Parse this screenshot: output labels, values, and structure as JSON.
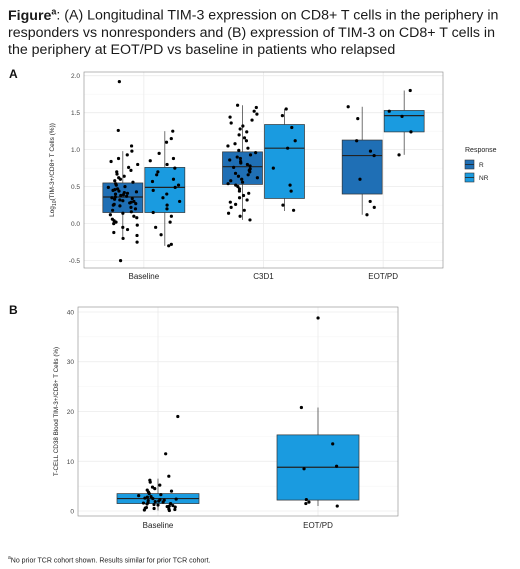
{
  "figure": {
    "title_bold": "Figure",
    "title_sup": "a",
    "title_text": ": (A) Longitudinal TIM-3 expression on CD8+ T cells in the periphery in responders vs nonresponders and (B) expression of TIM-3 on CD8+ T cells in the periphery at EOT/PD vs baseline in patients who relapsed",
    "footnote_sup": "a",
    "footnote_text": "No prior TCR cohort shown. Results similar for prior TCR cohort."
  },
  "panels": {
    "a_label": "A",
    "b_label": "B"
  },
  "colors": {
    "R": "#1f6fb5",
    "NR": "#1a9be0",
    "points": "#000000",
    "grid": "#ebebeb",
    "border": "#888888"
  },
  "chart_data": [
    {
      "type": "box",
      "panel": "A",
      "ylabel_pre": "Log",
      "ylabel_sub": "10",
      "ylabel_post": "(TIM-3+/CD8+ T Cells (%))",
      "ylim": [
        -0.6,
        2.05
      ],
      "yticks": [
        "-0.5",
        "0.0",
        "0.5",
        "1.0",
        "1.5",
        "2.0"
      ],
      "categories": [
        "Baseline",
        "C3D1",
        "EOT/PD"
      ],
      "grid": true,
      "legend": {
        "title": "Response",
        "items": [
          "R",
          "NR"
        ],
        "placement": "right"
      },
      "series": [
        {
          "name": "R",
          "boxes": [
            {
              "q1": 0.15,
              "median": 0.36,
              "q3": 0.55,
              "whisker_low": -0.2,
              "whisker_high": 0.98
            },
            {
              "q1": 0.53,
              "median": 0.77,
              "q3": 0.97,
              "whisker_low": 0.05,
              "whisker_high": 1.6
            },
            {
              "q1": 0.4,
              "median": 0.92,
              "q3": 1.13,
              "whisker_low": 0.12,
              "whisker_high": 1.58
            }
          ]
        },
        {
          "name": "NR",
          "boxes": [
            {
              "q1": 0.15,
              "median": 0.49,
              "q3": 0.76,
              "whisker_low": -0.3,
              "whisker_high": 1.25
            },
            {
              "q1": 0.34,
              "median": 1.02,
              "q3": 1.34,
              "whisker_low": 0.17,
              "whisker_high": 1.55
            },
            {
              "q1": 1.24,
              "median": 1.46,
              "q3": 1.53,
              "whisker_low": 0.93,
              "whisker_high": 1.8
            }
          ]
        }
      ],
      "points": [
        [
          0,
          "R",
          1.92
        ],
        [
          0,
          "R",
          1.26
        ],
        [
          0,
          "R",
          1.05
        ],
        [
          0,
          "R",
          0.98
        ],
        [
          0,
          "R",
          0.93
        ],
        [
          0,
          "R",
          0.88
        ],
        [
          0,
          "R",
          0.84
        ],
        [
          0,
          "R",
          0.8
        ],
        [
          0,
          "R",
          0.76
        ],
        [
          0,
          "R",
          0.72
        ],
        [
          0,
          "R",
          0.7
        ],
        [
          0,
          "R",
          0.67
        ],
        [
          0,
          "R",
          0.64
        ],
        [
          0,
          "R",
          0.62
        ],
        [
          0,
          "R",
          0.6
        ],
        [
          0,
          "R",
          0.58
        ],
        [
          0,
          "R",
          0.56
        ],
        [
          0,
          "R",
          0.54
        ],
        [
          0,
          "R",
          0.52
        ],
        [
          0,
          "R",
          0.5
        ],
        [
          0,
          "R",
          0.49
        ],
        [
          0,
          "R",
          0.47
        ],
        [
          0,
          "R",
          0.46
        ],
        [
          0,
          "R",
          0.45
        ],
        [
          0,
          "R",
          0.44
        ],
        [
          0,
          "R",
          0.43
        ],
        [
          0,
          "R",
          0.42
        ],
        [
          0,
          "R",
          0.41
        ],
        [
          0,
          "R",
          0.4
        ],
        [
          0,
          "R",
          0.39
        ],
        [
          0,
          "R",
          0.38
        ],
        [
          0,
          "R",
          0.37
        ],
        [
          0,
          "R",
          0.36
        ],
        [
          0,
          "R",
          0.35
        ],
        [
          0,
          "R",
          0.34
        ],
        [
          0,
          "R",
          0.33
        ],
        [
          0,
          "R",
          0.32
        ],
        [
          0,
          "R",
          0.31
        ],
        [
          0,
          "R",
          0.3
        ],
        [
          0,
          "R",
          0.29
        ],
        [
          0,
          "R",
          0.28
        ],
        [
          0,
          "R",
          0.27
        ],
        [
          0,
          "R",
          0.26
        ],
        [
          0,
          "R",
          0.25
        ],
        [
          0,
          "R",
          0.24
        ],
        [
          0,
          "R",
          0.22
        ],
        [
          0,
          "R",
          0.2
        ],
        [
          0,
          "R",
          0.18
        ],
        [
          0,
          "R",
          0.16
        ],
        [
          0,
          "R",
          0.14
        ],
        [
          0,
          "R",
          0.12
        ],
        [
          0,
          "R",
          0.1
        ],
        [
          0,
          "R",
          0.08
        ],
        [
          0,
          "R",
          0.06
        ],
        [
          0,
          "R",
          0.04
        ],
        [
          0,
          "R",
          0.02
        ],
        [
          0,
          "R",
          0.0
        ],
        [
          0,
          "R",
          -0.02
        ],
        [
          0,
          "R",
          -0.05
        ],
        [
          0,
          "R",
          -0.08
        ],
        [
          0,
          "R",
          -0.12
        ],
        [
          0,
          "R",
          -0.16
        ],
        [
          0,
          "R",
          -0.2
        ],
        [
          0,
          "R",
          -0.25
        ],
        [
          0,
          "R",
          -0.5
        ],
        [
          0,
          "NR",
          1.25
        ],
        [
          0,
          "NR",
          1.15
        ],
        [
          0,
          "NR",
          1.1
        ],
        [
          0,
          "NR",
          0.95
        ],
        [
          0,
          "NR",
          0.88
        ],
        [
          0,
          "NR",
          0.85
        ],
        [
          0,
          "NR",
          0.8
        ],
        [
          0,
          "NR",
          0.75
        ],
        [
          0,
          "NR",
          0.7
        ],
        [
          0,
          "NR",
          0.66
        ],
        [
          0,
          "NR",
          0.6
        ],
        [
          0,
          "NR",
          0.57
        ],
        [
          0,
          "NR",
          0.52
        ],
        [
          0,
          "NR",
          0.49
        ],
        [
          0,
          "NR",
          0.45
        ],
        [
          0,
          "NR",
          0.4
        ],
        [
          0,
          "NR",
          0.35
        ],
        [
          0,
          "NR",
          0.3
        ],
        [
          0,
          "NR",
          0.25
        ],
        [
          0,
          "NR",
          0.2
        ],
        [
          0,
          "NR",
          0.15
        ],
        [
          0,
          "NR",
          0.1
        ],
        [
          0,
          "NR",
          0.02
        ],
        [
          0,
          "NR",
          -0.05
        ],
        [
          0,
          "NR",
          -0.15
        ],
        [
          0,
          "NR",
          -0.28
        ],
        [
          0,
          "NR",
          -0.3
        ],
        [
          1,
          "R",
          1.6
        ],
        [
          1,
          "R",
          1.57
        ],
        [
          1,
          "R",
          1.52
        ],
        [
          1,
          "R",
          1.48
        ],
        [
          1,
          "R",
          1.44
        ],
        [
          1,
          "R",
          1.4
        ],
        [
          1,
          "R",
          1.36
        ],
        [
          1,
          "R",
          1.32
        ],
        [
          1,
          "R",
          1.28
        ],
        [
          1,
          "R",
          1.24
        ],
        [
          1,
          "R",
          1.2
        ],
        [
          1,
          "R",
          1.16
        ],
        [
          1,
          "R",
          1.12
        ],
        [
          1,
          "R",
          1.08
        ],
        [
          1,
          "R",
          1.05
        ],
        [
          1,
          "R",
          1.02
        ],
        [
          1,
          "R",
          0.99
        ],
        [
          1,
          "R",
          0.96
        ],
        [
          1,
          "R",
          0.93
        ],
        [
          1,
          "R",
          0.9
        ],
        [
          1,
          "R",
          0.88
        ],
        [
          1,
          "R",
          0.86
        ],
        [
          1,
          "R",
          0.84
        ],
        [
          1,
          "R",
          0.82
        ],
        [
          1,
          "R",
          0.8
        ],
        [
          1,
          "R",
          0.78
        ],
        [
          1,
          "R",
          0.76
        ],
        [
          1,
          "R",
          0.74
        ],
        [
          1,
          "R",
          0.72
        ],
        [
          1,
          "R",
          0.7
        ],
        [
          1,
          "R",
          0.68
        ],
        [
          1,
          "R",
          0.66
        ],
        [
          1,
          "R",
          0.64
        ],
        [
          1,
          "R",
          0.62
        ],
        [
          1,
          "R",
          0.6
        ],
        [
          1,
          "R",
          0.58
        ],
        [
          1,
          "R",
          0.56
        ],
        [
          1,
          "R",
          0.54
        ],
        [
          1,
          "R",
          0.52
        ],
        [
          1,
          "R",
          0.5
        ],
        [
          1,
          "R",
          0.47
        ],
        [
          1,
          "R",
          0.44
        ],
        [
          1,
          "R",
          0.41
        ],
        [
          1,
          "R",
          0.38
        ],
        [
          1,
          "R",
          0.35
        ],
        [
          1,
          "R",
          0.32
        ],
        [
          1,
          "R",
          0.29
        ],
        [
          1,
          "R",
          0.26
        ],
        [
          1,
          "R",
          0.22
        ],
        [
          1,
          "R",
          0.18
        ],
        [
          1,
          "R",
          0.14
        ],
        [
          1,
          "R",
          0.1
        ],
        [
          1,
          "R",
          0.05
        ],
        [
          1,
          "NR",
          1.55
        ],
        [
          1,
          "NR",
          1.46
        ],
        [
          1,
          "NR",
          1.3
        ],
        [
          1,
          "NR",
          1.12
        ],
        [
          1,
          "NR",
          1.02
        ],
        [
          1,
          "NR",
          0.75
        ],
        [
          1,
          "NR",
          0.52
        ],
        [
          1,
          "NR",
          0.44
        ],
        [
          1,
          "NR",
          0.25
        ],
        [
          1,
          "NR",
          0.18
        ],
        [
          2,
          "R",
          1.58
        ],
        [
          2,
          "R",
          1.42
        ],
        [
          2,
          "R",
          1.12
        ],
        [
          2,
          "R",
          0.98
        ],
        [
          2,
          "R",
          0.92
        ],
        [
          2,
          "R",
          0.6
        ],
        [
          2,
          "R",
          0.3
        ],
        [
          2,
          "R",
          0.22
        ],
        [
          2,
          "R",
          0.12
        ],
        [
          2,
          "NR",
          1.8
        ],
        [
          2,
          "NR",
          1.52
        ],
        [
          2,
          "NR",
          1.45
        ],
        [
          2,
          "NR",
          1.24
        ],
        [
          2,
          "NR",
          0.93
        ]
      ]
    },
    {
      "type": "box",
      "panel": "B",
      "ylabel": "T-CELL CD38 Blood TIM-3+/CD8+ T Cells (%)",
      "ylim": [
        -1,
        41
      ],
      "yticks": [
        "0",
        "10",
        "20",
        "30",
        "40"
      ],
      "categories": [
        "Baseline",
        "EOT/PD"
      ],
      "grid": true,
      "boxes": [
        {
          "q1": 1.5,
          "median": 2.5,
          "q3": 3.5,
          "whisker_low": 0.1,
          "whisker_high": 6.5
        },
        {
          "q1": 2.2,
          "median": 8.8,
          "q3": 15.3,
          "whisker_low": 1.0,
          "whisker_high": 20.8
        }
      ],
      "points": [
        [
          0,
          19.0
        ],
        [
          0,
          11.5
        ],
        [
          0,
          7.0
        ],
        [
          0,
          6.2
        ],
        [
          0,
          5.8
        ],
        [
          0,
          5.2
        ],
        [
          0,
          4.8
        ],
        [
          0,
          4.5
        ],
        [
          0,
          4.2
        ],
        [
          0,
          4.0
        ],
        [
          0,
          3.8
        ],
        [
          0,
          3.5
        ],
        [
          0,
          3.3
        ],
        [
          0,
          3.1
        ],
        [
          0,
          2.9
        ],
        [
          0,
          2.8
        ],
        [
          0,
          2.6
        ],
        [
          0,
          2.5
        ],
        [
          0,
          2.4
        ],
        [
          0,
          2.3
        ],
        [
          0,
          2.2
        ],
        [
          0,
          2.1
        ],
        [
          0,
          2.0
        ],
        [
          0,
          1.9
        ],
        [
          0,
          1.8
        ],
        [
          0,
          1.7
        ],
        [
          0,
          1.6
        ],
        [
          0,
          1.5
        ],
        [
          0,
          1.4
        ],
        [
          0,
          1.3
        ],
        [
          0,
          1.2
        ],
        [
          0,
          1.1
        ],
        [
          0,
          1.0
        ],
        [
          0,
          0.9
        ],
        [
          0,
          0.8
        ],
        [
          0,
          0.7
        ],
        [
          0,
          0.6
        ],
        [
          0,
          0.5
        ],
        [
          0,
          0.4
        ],
        [
          0,
          0.3
        ],
        [
          0,
          0.2
        ],
        [
          0,
          0.1
        ],
        [
          1,
          38.8
        ],
        [
          1,
          20.8
        ],
        [
          1,
          13.5
        ],
        [
          1,
          9.0
        ],
        [
          1,
          8.5
        ],
        [
          1,
          2.3
        ],
        [
          1,
          1.8
        ],
        [
          1,
          1.5
        ],
        [
          1,
          1.0
        ]
      ]
    }
  ]
}
